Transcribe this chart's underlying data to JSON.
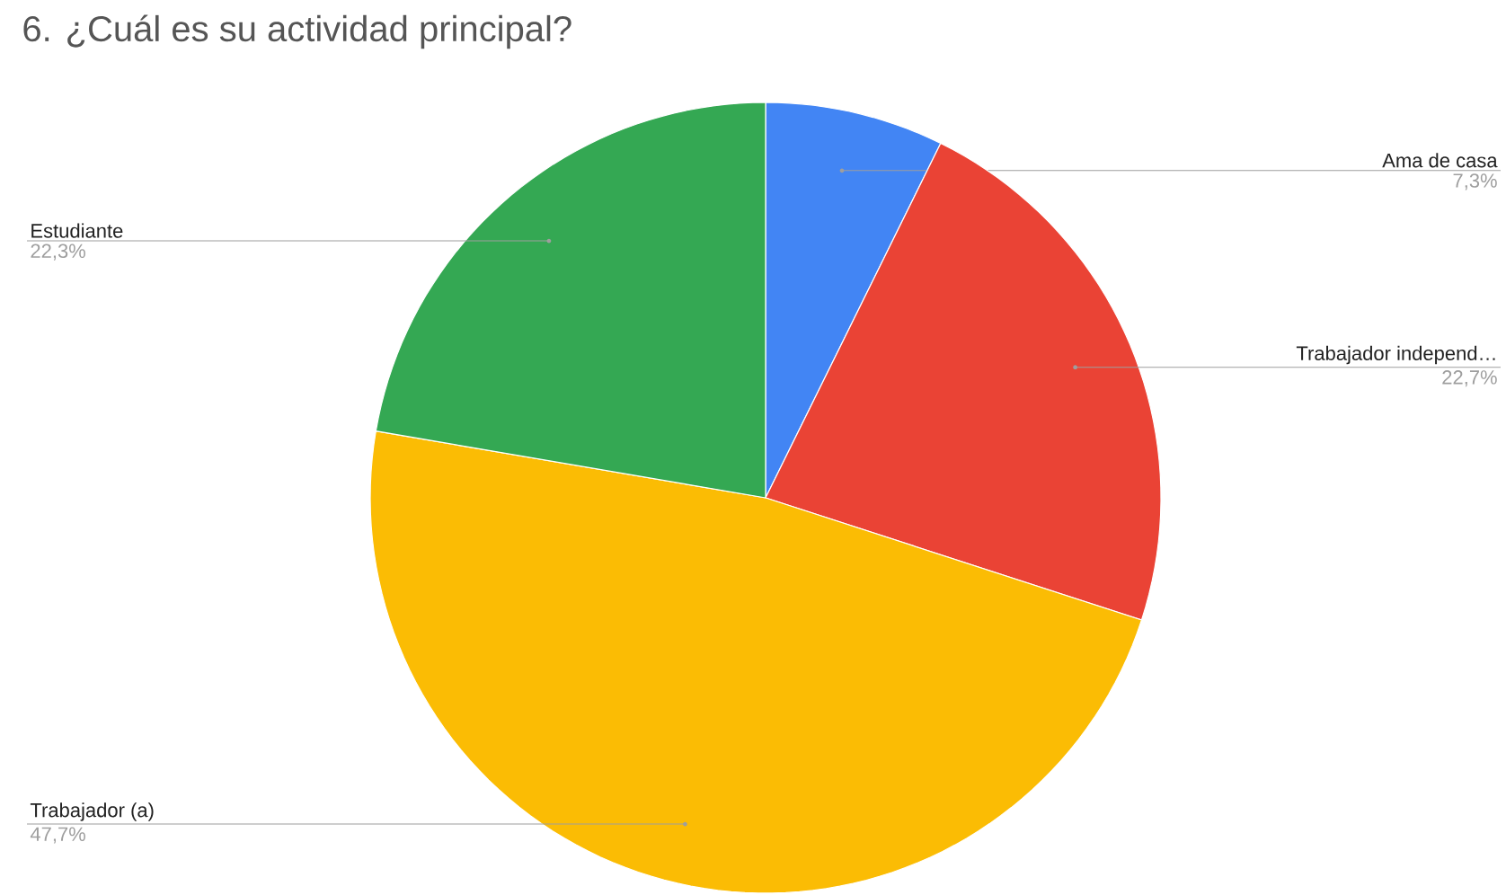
{
  "chart_data": {
    "type": "pie",
    "title": "6. ¿Cuál es su actividad principal?",
    "categories": [
      "Ama de casa",
      "Trabajador independ…",
      "Trabajador (a)",
      "Estudiante"
    ],
    "values": [
      7.3,
      22.7,
      47.7,
      22.3
    ],
    "value_labels": [
      "7,3%",
      "22,7%",
      "47,7%",
      "22,3%"
    ],
    "colors": [
      "#4285f4",
      "#ea4335",
      "#fbbc04",
      "#34a853"
    ]
  }
}
